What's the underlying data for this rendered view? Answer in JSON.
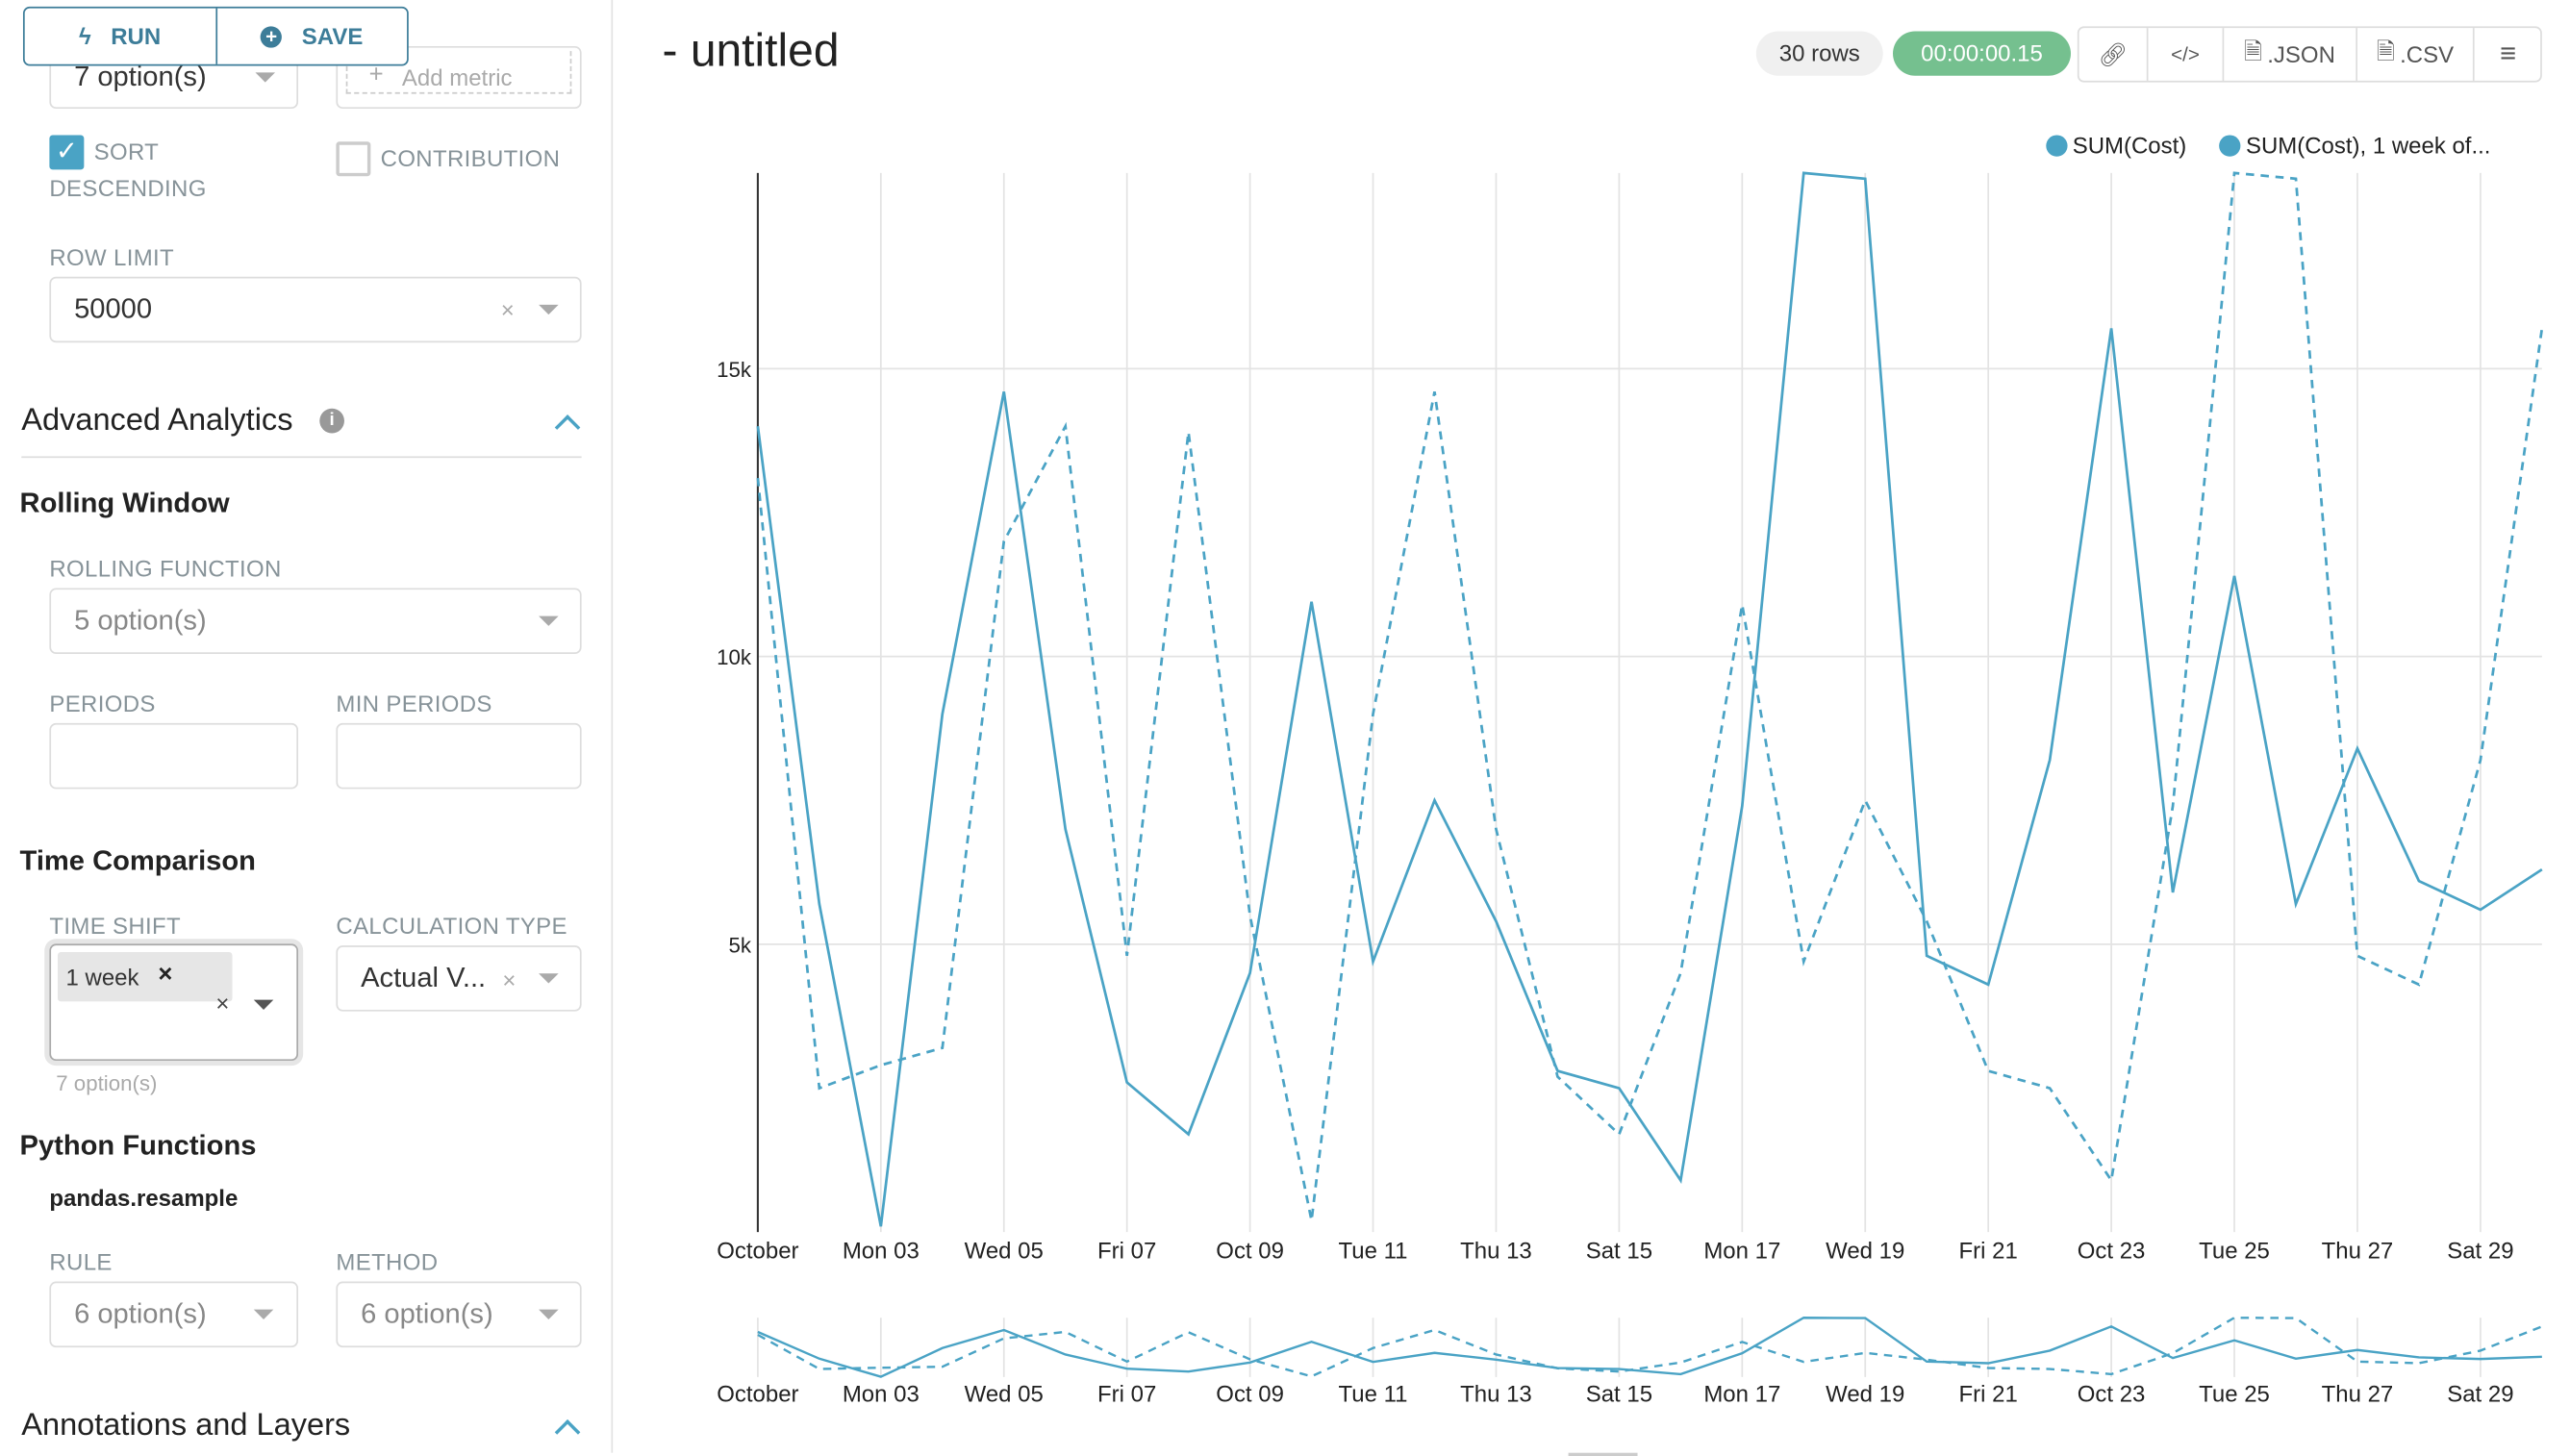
{
  "toolbar": {
    "run_label": "RUN",
    "save_label": "SAVE"
  },
  "sidebar": {
    "metrics_select": "7 option(s)",
    "add_metric": "Add metric",
    "sort_descending": {
      "label_1": "SORT",
      "label_2": "DESCENDING",
      "checked": true
    },
    "contribution": {
      "label": "CONTRIBUTION",
      "checked": false
    },
    "row_limit": {
      "label": "ROW LIMIT",
      "value": "50000"
    },
    "advanced_analytics": {
      "title": "Advanced Analytics",
      "rolling_window": {
        "title": "Rolling Window",
        "rolling_function_label": "ROLLING FUNCTION",
        "rolling_function_value": "5 option(s)",
        "periods_label": "PERIODS",
        "periods_value": "",
        "min_periods_label": "MIN PERIODS",
        "min_periods_value": ""
      },
      "time_comparison": {
        "title": "Time Comparison",
        "time_shift_label": "TIME SHIFT",
        "time_shift_tag": "1 week",
        "time_shift_options": "7 option(s)",
        "calculation_type_label": "CALCULATION TYPE",
        "calculation_type_value": "Actual V..."
      },
      "python_functions": {
        "title": "Python Functions",
        "subtitle": "pandas.resample",
        "rule_label": "RULE",
        "rule_value": "6 option(s)",
        "method_label": "METHOD",
        "method_value": "6 option(s)"
      }
    },
    "annotations": {
      "title": "Annotations and Layers"
    }
  },
  "header": {
    "title": "- untitled",
    "rows_badge": "30 rows",
    "timer": "00:00:00.15",
    "timer_color": "#75c08f",
    "json_label": ".JSON",
    "csv_label": ".CSV"
  },
  "chart_data": {
    "type": "line",
    "x": [
      1,
      2,
      3,
      4,
      5,
      6,
      7,
      8,
      9,
      10,
      11,
      12,
      13,
      14,
      15,
      16,
      17,
      18,
      19,
      20,
      21,
      22,
      23,
      24,
      25,
      26,
      27,
      28,
      29,
      30
    ],
    "x_tick_labels": [
      "October",
      "Mon 03",
      "Wed 05",
      "Fri 07",
      "Oct 09",
      "Tue 11",
      "Thu 13",
      "Sat 15",
      "Mon 17",
      "Wed 19",
      "Fri 21",
      "Oct 23",
      "Tue 25",
      "Thu 27",
      "Sat 29"
    ],
    "x_tick_days": [
      1,
      3,
      5,
      7,
      9,
      11,
      13,
      15,
      17,
      19,
      21,
      23,
      25,
      27,
      29
    ],
    "y_tick_labels": [
      "5k",
      "10k",
      "15k"
    ],
    "y_ticks": [
      5000,
      10000,
      15000
    ],
    "ylim": [
      0,
      18400
    ],
    "grid": true,
    "legend_position": "top-right",
    "series": [
      {
        "name": "SUM(Cost)",
        "style": "solid",
        "color": "#4aa3c5",
        "values": [
          14000,
          5700,
          100,
          9000,
          14600,
          7000,
          2600,
          1700,
          4500,
          10950,
          4700,
          7500,
          5400,
          2800,
          2500,
          900,
          7400,
          18400,
          18300,
          4800,
          4300,
          8200,
          15700,
          5900,
          11400,
          5700,
          8400,
          6100,
          5600,
          6300
        ]
      },
      {
        "name": "SUM(Cost), 1 week of...",
        "style": "dashed",
        "color": "#4aa3c5",
        "values": [
          13100,
          2500,
          2900,
          3200,
          12000,
          14000,
          4800,
          13900,
          5500,
          200,
          9000,
          14600,
          7000,
          2700,
          1700,
          4500,
          10900,
          4700,
          7500,
          5400,
          2800,
          2500,
          900,
          7400,
          18400,
          18300,
          4800,
          4300,
          8200,
          15700
        ]
      }
    ]
  }
}
